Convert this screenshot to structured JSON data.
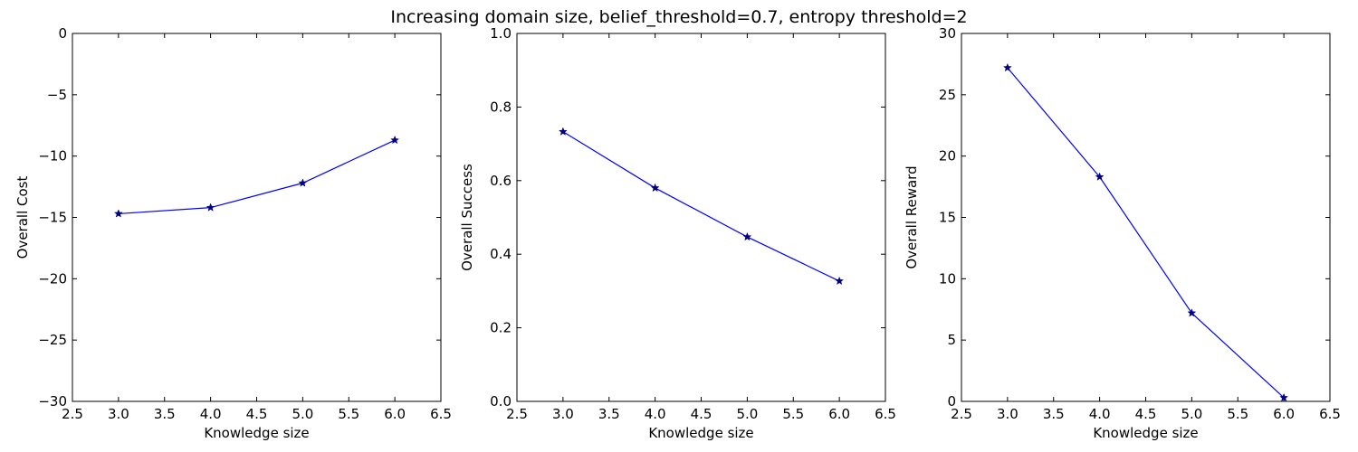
{
  "figure": {
    "suptitle": "Increasing domain size, belief_threshold=0.7, entropy threshold=2"
  },
  "style": {
    "line_color": "#0000ff",
    "marker_color": "#000080",
    "axis_color": "#000000",
    "background": "#ffffff"
  },
  "chart_data": [
    {
      "type": "line",
      "title": "",
      "xlabel": "Knowledge size",
      "ylabel": "Overall Cost",
      "x": [
        3.0,
        4.0,
        5.0,
        6.0
      ],
      "series": [
        {
          "values": [
            -14.7,
            -14.2,
            -12.2,
            -8.7
          ],
          "marker": "star"
        }
      ],
      "xlim": [
        2.5,
        6.5
      ],
      "ylim": [
        -30,
        0
      ],
      "xticks": [
        "2.5",
        "3.0",
        "3.5",
        "4.0",
        "4.5",
        "5.0",
        "5.5",
        "6.0",
        "6.5"
      ],
      "yticks": [
        "−30",
        "−25",
        "−20",
        "−15",
        "−10",
        "−5",
        "0"
      ],
      "grid": false
    },
    {
      "type": "line",
      "title": "",
      "xlabel": "Knowledge size",
      "ylabel": "Overall Success",
      "x": [
        3.0,
        4.0,
        5.0,
        6.0
      ],
      "series": [
        {
          "values": [
            0.733,
            0.58,
            0.447,
            0.327
          ],
          "marker": "star"
        }
      ],
      "xlim": [
        2.5,
        6.5
      ],
      "ylim": [
        0.0,
        1.0
      ],
      "xticks": [
        "2.5",
        "3.0",
        "3.5",
        "4.0",
        "4.5",
        "5.0",
        "5.5",
        "6.0",
        "6.5"
      ],
      "yticks": [
        "0.0",
        "0.2",
        "0.4",
        "0.6",
        "0.8",
        "1.0"
      ],
      "grid": false
    },
    {
      "type": "line",
      "title": "",
      "xlabel": "Knowledge size",
      "ylabel": "Overall Reward",
      "x": [
        3.0,
        4.0,
        5.0,
        6.0
      ],
      "series": [
        {
          "values": [
            27.2,
            18.3,
            7.2,
            0.3
          ],
          "marker": "star"
        }
      ],
      "xlim": [
        2.5,
        6.5
      ],
      "ylim": [
        0,
        30
      ],
      "xticks": [
        "2.5",
        "3.0",
        "3.5",
        "4.0",
        "4.5",
        "5.0",
        "5.5",
        "6.0",
        "6.5"
      ],
      "yticks": [
        "0",
        "5",
        "10",
        "15",
        "20",
        "25",
        "30"
      ],
      "grid": false
    }
  ]
}
